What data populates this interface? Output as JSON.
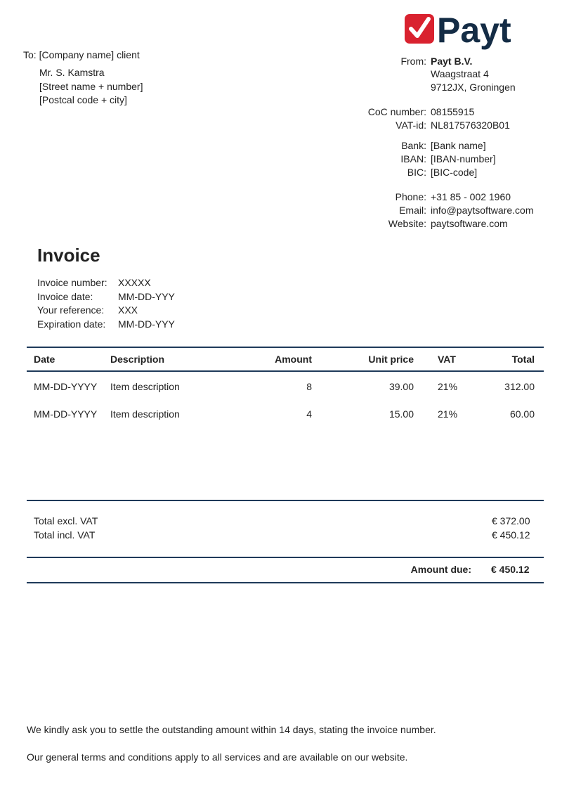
{
  "logo": {
    "text": "Payt",
    "colors": {
      "check": "#d9222f",
      "text": "#142c45"
    }
  },
  "to": {
    "label": "To:",
    "company": "[Company name] client",
    "lines": [
      "Mr. S. Kamstra",
      "[Street name + number]",
      "[Postcal code + city]"
    ]
  },
  "from": {
    "label": "From:",
    "name": "Payt B.V.",
    "lines": [
      "Waagstraat 4",
      "9712JX, Groningen"
    ]
  },
  "company_info": [
    {
      "label": "CoC number:",
      "value": "08155915"
    },
    {
      "label": "VAT-id:",
      "value": "NL817576320B01"
    },
    {
      "label": "Bank:",
      "value": "[Bank name]"
    },
    {
      "label": "IBAN:",
      "value": "[IBAN-number]"
    },
    {
      "label": "BIC:",
      "value": "[BIC-code]"
    },
    {
      "label": "Phone:",
      "value": "+31 85 - 002 1960"
    },
    {
      "label": "Email:",
      "value": "info@paytsoftware.com"
    },
    {
      "label": "Website:",
      "value": "paytsoftware.com"
    }
  ],
  "invoice": {
    "title": "Invoice",
    "details": [
      {
        "label": "Invoice number:",
        "value": "XXXXX"
      },
      {
        "label": "Invoice date:",
        "value": "MM-DD-YYY"
      },
      {
        "label": "Your reference:",
        "value": "XXX"
      },
      {
        "label": "Expiration date:",
        "value": "MM-DD-YYY"
      }
    ]
  },
  "table": {
    "headers": [
      "Date",
      "Description",
      "Amount",
      "Unit price",
      "VAT",
      "Total"
    ],
    "rows": [
      [
        "MM-DD-YYYY",
        "Item description",
        "8",
        "39.00",
        "21%",
        "312.00"
      ],
      [
        "MM-DD-YYYY",
        "Item description",
        "4",
        "15.00",
        "21%",
        "60.00"
      ]
    ]
  },
  "totals": {
    "excl_label": "Total excl. VAT",
    "excl_value": "€ 372.00",
    "incl_label": "Total incl. VAT",
    "incl_value": "€ 450.12",
    "due_label": "Amount due:",
    "due_value": "€ 450.12"
  },
  "footer": [
    "We kindly ask you to settle the outstanding amount within 14 days, stating the invoice number.",
    "Our general terms and conditions apply to all services and are available on our website."
  ],
  "accent": "#1f3a5a"
}
